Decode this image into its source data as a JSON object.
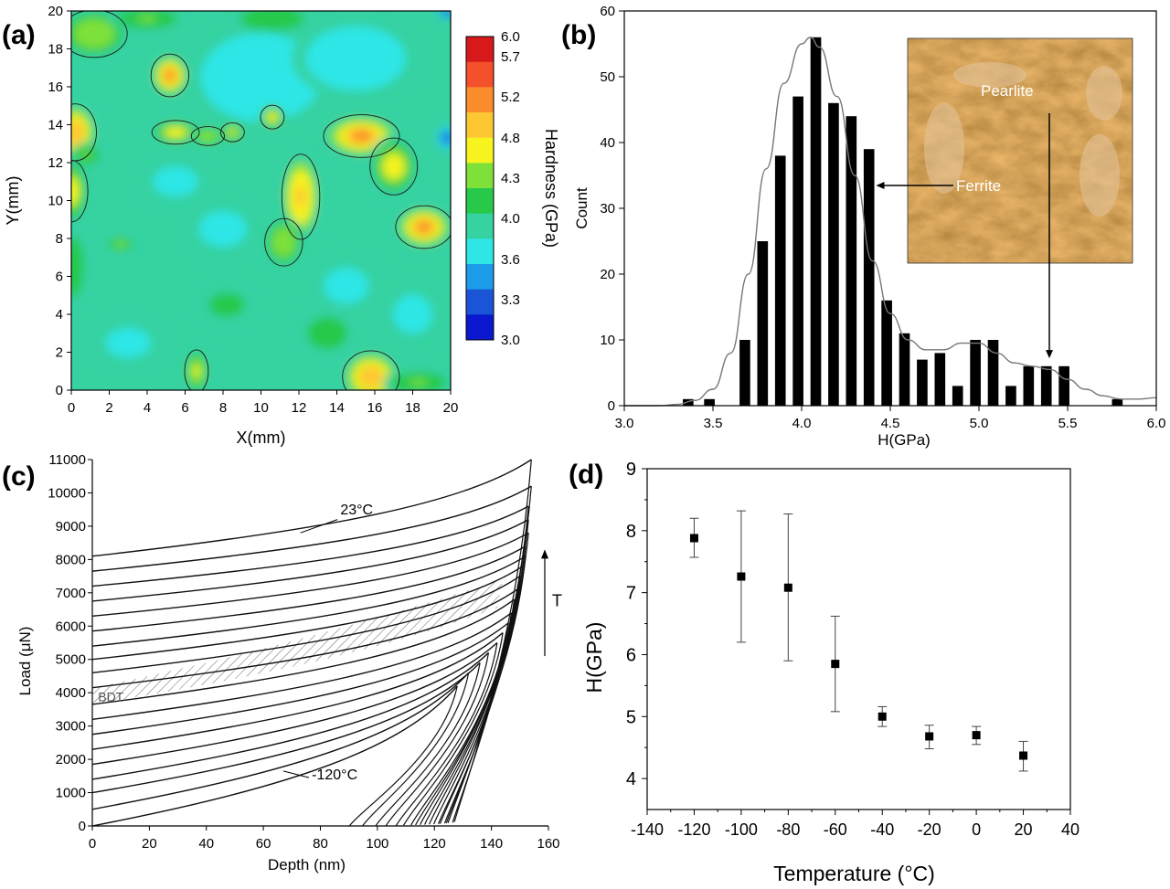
{
  "chart_data": [
    {
      "panel_label": "(a)",
      "type": "heatmap",
      "xlabel": "X(mm)",
      "ylabel": "Y(mm)",
      "xlim": [
        0,
        20
      ],
      "ylim": [
        0,
        20
      ],
      "x_ticks": [
        "0",
        "2",
        "4",
        "6",
        "8",
        "10",
        "12",
        "14",
        "16",
        "18",
        "20"
      ],
      "y_ticks": [
        "0",
        "2",
        "4",
        "6",
        "8",
        "10",
        "12",
        "14",
        "16",
        "18",
        "20"
      ],
      "colorbar": {
        "label": "Hardness (GPa)",
        "levels": [
          "6.0",
          "5.7",
          "5.2",
          "4.8",
          "4.3",
          "4.0",
          "3.6",
          "3.3",
          "3.0"
        ],
        "colors": [
          "#d7191c",
          "#f4502b",
          "#fb8d2c",
          "#fdc733",
          "#f7f31e",
          "#7ee13a",
          "#26c94a",
          "#36d2a2",
          "#2ee6e6",
          "#1c9be8",
          "#1a55d8",
          "#0a19d0"
        ]
      },
      "background_value": 4.1,
      "hotspots": [
        {
          "x": 5.2,
          "y": 16.6,
          "rx": 0.8,
          "ry": 0.9,
          "peak": 5.8
        },
        {
          "x": 0.2,
          "y": 13.6,
          "rx": 0.9,
          "ry": 1.2,
          "peak": 5.5
        },
        {
          "x": 0.0,
          "y": 10.5,
          "rx": 0.7,
          "ry": 1.3,
          "peak": 5.2
        },
        {
          "x": 1.2,
          "y": 18.8,
          "rx": 1.4,
          "ry": 1.0,
          "peak": 4.9
        },
        {
          "x": 5.5,
          "y": 13.6,
          "rx": 1.0,
          "ry": 0.5,
          "peak": 5.2
        },
        {
          "x": 7.2,
          "y": 13.4,
          "rx": 0.7,
          "ry": 0.4,
          "peak": 4.9
        },
        {
          "x": 8.5,
          "y": 13.6,
          "rx": 0.5,
          "ry": 0.4,
          "peak": 5.0
        },
        {
          "x": 10.6,
          "y": 14.4,
          "rx": 0.5,
          "ry": 0.5,
          "peak": 5.1
        },
        {
          "x": 12.1,
          "y": 10.2,
          "rx": 0.8,
          "ry": 1.8,
          "peak": 5.4
        },
        {
          "x": 11.2,
          "y": 7.8,
          "rx": 0.8,
          "ry": 1.0,
          "peak": 4.9
        },
        {
          "x": 15.3,
          "y": 13.4,
          "rx": 1.6,
          "ry": 0.9,
          "peak": 5.7
        },
        {
          "x": 17.0,
          "y": 11.8,
          "rx": 1.0,
          "ry": 1.2,
          "peak": 5.1
        },
        {
          "x": 18.6,
          "y": 8.6,
          "rx": 1.2,
          "ry": 0.9,
          "peak": 5.6
        },
        {
          "x": 15.8,
          "y": 0.7,
          "rx": 1.2,
          "ry": 1.1,
          "peak": 5.5
        },
        {
          "x": 6.6,
          "y": 1.0,
          "rx": 0.5,
          "ry": 0.9,
          "peak": 5.0
        },
        {
          "x": 2.6,
          "y": 7.7,
          "rx": 0.6,
          "ry": 0.3,
          "peak": 4.8
        },
        {
          "x": 0.8,
          "y": 12.4,
          "rx": 0.6,
          "ry": 0.5,
          "peak": 4.7
        },
        {
          "x": 10.6,
          "y": 19.6,
          "rx": 1.6,
          "ry": 0.6,
          "peak": 4.6
        },
        {
          "x": 4.0,
          "y": 19.6,
          "rx": 1.5,
          "ry": 0.5,
          "peak": 4.7
        },
        {
          "x": 13.5,
          "y": 3.0,
          "rx": 1.0,
          "ry": 0.8,
          "peak": 4.6
        },
        {
          "x": 8.2,
          "y": 4.5,
          "rx": 1.2,
          "ry": 0.8,
          "peak": 4.5
        },
        {
          "x": 18.3,
          "y": 0.4,
          "rx": 1.4,
          "ry": 0.5,
          "peak": 4.7
        },
        {
          "x": 0.1,
          "y": 6.5,
          "rx": 0.5,
          "ry": 1.5,
          "peak": 4.6
        }
      ],
      "coldspots": [
        {
          "x": 10.0,
          "y": 16.5,
          "rx": 3.0,
          "ry": 2.2,
          "peak": 3.75
        },
        {
          "x": 15.0,
          "y": 17.5,
          "rx": 2.5,
          "ry": 1.6,
          "peak": 3.7
        },
        {
          "x": 19.8,
          "y": 13.3,
          "rx": 0.5,
          "ry": 0.6,
          "peak": 3.2
        },
        {
          "x": 19.8,
          "y": 19.9,
          "rx": 0.5,
          "ry": 0.3,
          "peak": 3.1
        },
        {
          "x": 5.5,
          "y": 11.0,
          "rx": 1.5,
          "ry": 1.0,
          "peak": 3.9
        },
        {
          "x": 14.5,
          "y": 5.5,
          "rx": 1.5,
          "ry": 1.2,
          "peak": 3.9
        },
        {
          "x": 3.0,
          "y": 2.5,
          "rx": 1.5,
          "ry": 1.0,
          "peak": 3.9
        },
        {
          "x": 18.0,
          "y": 4.0,
          "rx": 1.3,
          "ry": 1.3,
          "peak": 3.9
        },
        {
          "x": 8.0,
          "y": 8.5,
          "rx": 1.6,
          "ry": 1.2,
          "peak": 3.9
        }
      ]
    },
    {
      "panel_label": "(b)",
      "type": "bar",
      "xlabel": "H(GPa)",
      "ylabel": "Count",
      "xlim": [
        3.0,
        6.0
      ],
      "ylim": [
        0,
        60
      ],
      "x_ticks": [
        "3.0",
        "3.5",
        "4.0",
        "4.5",
        "5.0",
        "5.5",
        "6.0"
      ],
      "y_ticks": [
        "0",
        "10",
        "20",
        "30",
        "40",
        "50",
        "60"
      ],
      "bins": [
        3.36,
        3.48,
        3.68,
        3.78,
        3.88,
        3.98,
        4.08,
        4.18,
        4.28,
        4.38,
        4.48,
        4.58,
        4.68,
        4.78,
        4.88,
        4.98,
        5.08,
        5.18,
        5.28,
        5.38,
        5.48,
        5.78
      ],
      "counts": [
        1,
        1,
        10,
        25,
        38,
        47,
        56,
        46,
        44,
        39,
        16,
        11,
        7,
        8,
        3,
        10,
        10,
        3,
        6,
        6,
        6,
        1
      ],
      "fit_curve": {
        "x": [
          3.0,
          3.2,
          3.3,
          3.4,
          3.5,
          3.6,
          3.7,
          3.8,
          3.9,
          4.0,
          4.05,
          4.1,
          4.2,
          4.3,
          4.4,
          4.5,
          4.6,
          4.7,
          4.8,
          4.9,
          5.0,
          5.1,
          5.2,
          5.3,
          5.4,
          5.5,
          5.6,
          5.7,
          5.8,
          5.9,
          6.0
        ],
        "y": [
          0,
          0,
          0.2,
          0.8,
          2.5,
          8,
          20,
          36,
          49,
          55,
          56,
          54.5,
          47,
          35,
          22,
          14,
          10,
          8.5,
          8.5,
          9.5,
          9.5,
          8,
          6.5,
          6,
          5.5,
          4,
          2.5,
          1.5,
          1.0,
          1.0,
          1.2
        ]
      },
      "inset": {
        "labels": [
          "Pearlite",
          "Ferrite"
        ]
      }
    },
    {
      "panel_label": "(c)",
      "type": "line",
      "xlabel": "Depth (nm)",
      "ylabel": "Load (μN)",
      "xlim": [
        0,
        160
      ],
      "ylim": [
        0,
        11000
      ],
      "x_ticks": [
        "0",
        "20",
        "40",
        "60",
        "80",
        "100",
        "120",
        "140",
        "160"
      ],
      "y_ticks": [
        "0",
        "1000",
        "2000",
        "3000",
        "4000",
        "5000",
        "6000",
        "7000",
        "8000",
        "9000",
        "10000",
        "11000"
      ],
      "curves_start_loads": [
        0,
        500,
        1000,
        1400,
        1850,
        2300,
        2750,
        3200,
        3650,
        4150,
        4600,
        5000,
        5400,
        5850,
        6300,
        6750,
        7200,
        7650,
        8100
      ],
      "curves_peak": [
        {
          "d": 128,
          "l": 4200
        },
        {
          "d": 132,
          "l": 4600
        },
        {
          "d": 136,
          "l": 4900
        },
        {
          "d": 139,
          "l": 5200
        },
        {
          "d": 142,
          "l": 5500
        },
        {
          "d": 144,
          "l": 5800
        },
        {
          "d": 146,
          "l": 6100
        },
        {
          "d": 147,
          "l": 6400
        },
        {
          "d": 148,
          "l": 6800
        },
        {
          "d": 149,
          "l": 7100
        },
        {
          "d": 150,
          "l": 7500
        },
        {
          "d": 151,
          "l": 7800
        },
        {
          "d": 152,
          "l": 8100
        },
        {
          "d": 152,
          "l": 8400
        },
        {
          "d": 153,
          "l": 8800
        },
        {
          "d": 153,
          "l": 9200
        },
        {
          "d": 153,
          "l": 9600
        },
        {
          "d": 154,
          "l": 10200
        },
        {
          "d": 154,
          "l": 11000
        }
      ],
      "annotations": {
        "top": "23°C",
        "bottom": "-120°C",
        "band": "BDT",
        "arrow": "T"
      }
    },
    {
      "panel_label": "(d)",
      "type": "scatter",
      "xlabel": "Temperature (°C)",
      "ylabel": "H(GPa)",
      "xlim": [
        -140,
        40
      ],
      "ylim": [
        3.5,
        9
      ],
      "x_ticks": [
        "-140",
        "-120",
        "-100",
        "-80",
        "-60",
        "-40",
        "-20",
        "0",
        "20",
        "40"
      ],
      "y_ticks": [
        "4",
        "5",
        "6",
        "7",
        "8",
        "9"
      ],
      "points": [
        {
          "x": -120,
          "y": 7.88,
          "lo": 7.57,
          "hi": 8.2
        },
        {
          "x": -100,
          "y": 7.26,
          "lo": 6.2,
          "hi": 8.32
        },
        {
          "x": -80,
          "y": 7.08,
          "lo": 5.9,
          "hi": 8.27
        },
        {
          "x": -60,
          "y": 5.85,
          "lo": 5.08,
          "hi": 6.62
        },
        {
          "x": -40,
          "y": 5.0,
          "lo": 4.84,
          "hi": 5.16
        },
        {
          "x": -20,
          "y": 4.68,
          "lo": 4.48,
          "hi": 4.86
        },
        {
          "x": 0,
          "y": 4.7,
          "lo": 4.55,
          "hi": 4.84
        },
        {
          "x": 20,
          "y": 4.37,
          "lo": 4.12,
          "hi": 4.6
        }
      ]
    }
  ]
}
